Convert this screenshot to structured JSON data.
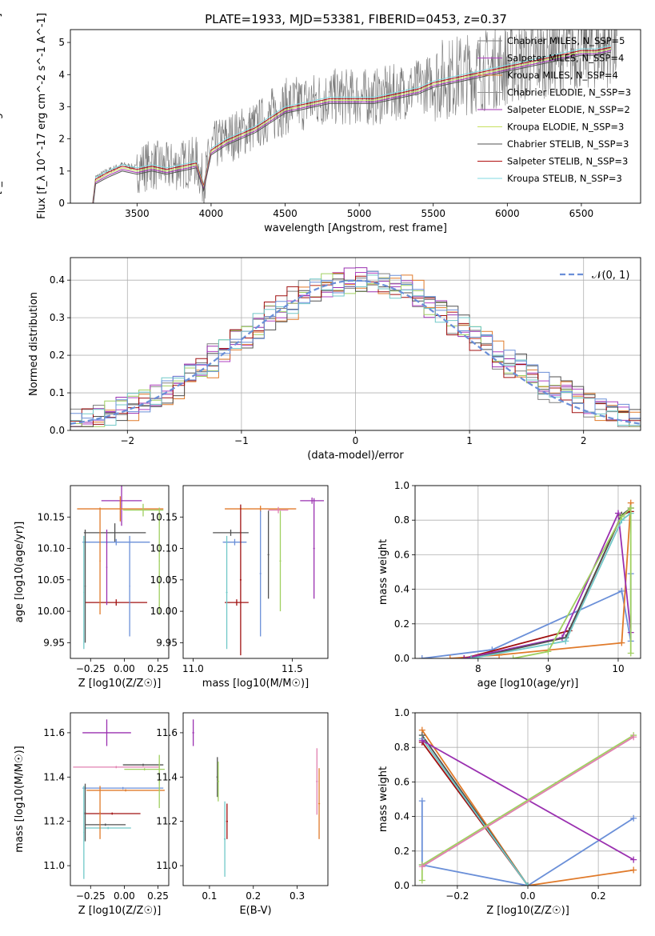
{
  "page": {
    "title": "PLATE=1933, MJD=53381, FIBERID=0453, z=0.37"
  },
  "colors": {
    "chabrier_miles": "#808080",
    "salpeter_miles": "#b040c0",
    "kroupa_miles": "#e08030",
    "chabrier_elodie": "#909090",
    "salpeter_elodie": "#a030b0",
    "kroupa_elodie": "#c8e060",
    "chabrier_stelib": "#505050",
    "salpeter_stelib": "#b01010",
    "kroupa_stelib": "#80d8e0",
    "blue": "#6a8fd8",
    "orange": "#e07a2a",
    "purple": "#9a30b0",
    "green": "#a0d060",
    "red": "#a01010",
    "teal": "#70c8c8",
    "dark": "#505050",
    "pink": "#e080b0"
  },
  "chart_data": [
    {
      "id": "spectrum",
      "type": "line",
      "title": "PLATE=1933, MJD=53381, FIBERID=0453, z=0.37",
      "xlabel": "wavelength [Angstrom, rest frame]",
      "ylabel": "Flux [f_λ 10^-17 erg cm^-2 s^-1 A^-1]",
      "xlim": [
        3050,
        6900
      ],
      "ylim": [
        0,
        5.4
      ],
      "xticks": [
        "3500",
        "4000",
        "4500",
        "5000",
        "5500",
        "6000",
        "6500"
      ],
      "yticks": [
        "0",
        "1",
        "2",
        "3",
        "4",
        "5"
      ],
      "legend_position": "top-right",
      "legend": [
        "Chabrier MILES, N_SSP=5",
        "Salpeter MILES, N_SSP=4",
        "Kroupa MILES, N_SSP=4",
        "Chabrier ELODIE, N_SSP=3",
        "Salpeter ELODIE, N_SSP=2",
        "Kroupa ELODIE, N_SSP=3",
        "Chabrier STELIB, N_SSP=3",
        "Salpeter STELIB, N_SSP=3",
        "Kroupa STELIB, N_SSP=3"
      ],
      "model_x": [
        3200,
        3220,
        3300,
        3400,
        3500,
        3600,
        3700,
        3800,
        3900,
        3950,
        4000,
        4100,
        4200,
        4300,
        4400,
        4500,
        4600,
        4700,
        4800,
        4900,
        5000,
        5100,
        5200,
        5300,
        5400,
        5500,
        5600,
        5700,
        5800,
        5900,
        6000,
        6100,
        6200,
        6300,
        6400,
        6500,
        6600,
        6700
      ],
      "model_y": [
        0.0,
        0.8,
        1.0,
        1.2,
        1.1,
        1.2,
        1.1,
        1.2,
        1.3,
        0.6,
        1.7,
        2.0,
        2.2,
        2.4,
        2.7,
        3.0,
        3.1,
        3.2,
        3.3,
        3.3,
        3.3,
        3.3,
        3.4,
        3.5,
        3.6,
        3.8,
        3.9,
        4.0,
        4.1,
        4.2,
        4.3,
        4.4,
        4.5,
        4.6,
        4.7,
        4.8,
        4.8,
        4.9
      ]
    },
    {
      "id": "residuals",
      "type": "histogram",
      "xlabel": "(data-model)/error",
      "ylabel": "Normed distribution",
      "xlim": [
        -2.5,
        2.5
      ],
      "ylim": [
        0,
        0.46
      ],
      "xticks": [
        "−2",
        "−1",
        "0",
        "1",
        "2"
      ],
      "yticks": [
        "0.0",
        "0.1",
        "0.2",
        "0.3",
        "0.4"
      ],
      "legend": [
        "𝒩(0, 1)"
      ],
      "legend_position": "top-right",
      "grid": true
    },
    {
      "id": "age_vs_Z",
      "type": "errorbar",
      "xlabel": "Z [log10(Z/Z☉)]",
      "ylabel": "age  [log10(age/yr)]",
      "xlim": [
        -0.4,
        0.33
      ],
      "ylim": [
        9.925,
        10.2
      ],
      "xticks": [
        "−0.25",
        "0.00",
        "0.25"
      ],
      "yticks": [
        "9.95",
        "10.00",
        "10.05",
        "10.10",
        "10.15"
      ],
      "points": [
        {
          "x": -0.02,
          "xerr": 0.15,
          "y": 10.176,
          "yerr": 0.04,
          "c": "purple"
        },
        {
          "x": -0.03,
          "xerr": 0.32,
          "y": 10.163,
          "yerr": 0.02,
          "c": "orange"
        },
        {
          "x": 0.14,
          "xerr": 0.15,
          "y": 10.161,
          "yerr": 0.01,
          "c": "green"
        },
        {
          "x": -0.07,
          "xerr": 0.23,
          "y": 10.125,
          "yerr": 0.015,
          "c": "dark"
        },
        {
          "x": -0.06,
          "xerr": 0.25,
          "y": 10.11,
          "yerr": 0.005,
          "c": "blue"
        },
        {
          "x": -0.06,
          "xerr": 0.23,
          "y": 10.014,
          "yerr": 0.005,
          "c": "red"
        },
        {
          "x": -0.3,
          "xerr": 0.004,
          "y": 10.03,
          "yerr": 0.09,
          "c": "teal"
        },
        {
          "x": -0.29,
          "xerr": 0.004,
          "y": 10.04,
          "yerr": 0.09,
          "c": "dark"
        },
        {
          "x": -0.13,
          "xerr": 0.004,
          "y": 10.07,
          "yerr": 0.06,
          "c": "purple"
        },
        {
          "x": -0.18,
          "xerr": 0.004,
          "y": 10.08,
          "yerr": 0.085,
          "c": "orange"
        },
        {
          "x": 0.04,
          "xerr": 0.004,
          "y": 10.04,
          "yerr": 0.08,
          "c": "blue"
        },
        {
          "x": 0.26,
          "xerr": 0.004,
          "y": 10.08,
          "yerr": 0.085,
          "c": "green"
        }
      ]
    },
    {
      "id": "age_vs_mass",
      "type": "errorbar",
      "xlabel": "mass [log10(M/M☉)]",
      "ylabel": "",
      "xlim": [
        10.95,
        11.68
      ],
      "ylim": [
        9.925,
        10.2
      ],
      "xticks": [
        "11.0",
        "11.5"
      ],
      "yticks": [
        "9.95",
        "10.00",
        "10.05",
        "10.10",
        "10.15"
      ],
      "points": [
        {
          "x": 11.6,
          "xerr": 0.06,
          "y": 10.176,
          "yerr": 0.005,
          "c": "purple"
        },
        {
          "x": 11.34,
          "xerr": 0.18,
          "y": 10.163,
          "yerr": 0.005,
          "c": "orange"
        },
        {
          "x": 11.43,
          "xerr": 0.05,
          "y": 10.161,
          "yerr": 0.005,
          "c": "pink"
        },
        {
          "x": 11.19,
          "xerr": 0.09,
          "y": 10.125,
          "yerr": 0.005,
          "c": "dark"
        },
        {
          "x": 11.21,
          "xerr": 0.06,
          "y": 10.11,
          "yerr": 0.005,
          "c": "blue"
        },
        {
          "x": 11.22,
          "xerr": 0.06,
          "y": 10.014,
          "yerr": 0.005,
          "c": "red"
        },
        {
          "x": 11.17,
          "xerr": 0.004,
          "y": 10.03,
          "yerr": 0.09,
          "c": "teal"
        },
        {
          "x": 11.24,
          "xerr": 0.004,
          "y": 10.05,
          "yerr": 0.12,
          "c": "red"
        },
        {
          "x": 11.34,
          "xerr": 0.004,
          "y": 10.06,
          "yerr": 0.1,
          "c": "blue"
        },
        {
          "x": 11.44,
          "xerr": 0.004,
          "y": 10.08,
          "yerr": 0.08,
          "c": "green"
        },
        {
          "x": 11.61,
          "xerr": 0.004,
          "y": 10.1,
          "yerr": 0.08,
          "c": "purple"
        },
        {
          "x": 11.38,
          "xerr": 0.004,
          "y": 10.09,
          "yerr": 0.07,
          "c": "dark"
        }
      ]
    },
    {
      "id": "weight_vs_age",
      "type": "line",
      "xlabel": "age  [log10(age/yr)]",
      "ylabel": "mass weight",
      "xlim": [
        7.1,
        10.32
      ],
      "ylim": [
        0,
        1.0
      ],
      "xticks": [
        "8",
        "9",
        "10"
      ],
      "yticks": [
        "0.0",
        "0.2",
        "0.4",
        "0.6",
        "0.8",
        "1.0"
      ],
      "grid": true,
      "series": [
        {
          "c": "blue",
          "x": [
            7.2,
            8.2,
            10.05,
            10.18,
            10.18
          ],
          "y": [
            0.0,
            0.05,
            0.39,
            0.1,
            0.49
          ]
        },
        {
          "c": "orange",
          "x": [
            7.6,
            8.3,
            10.05,
            10.18
          ],
          "y": [
            0.0,
            0.02,
            0.09,
            0.9
          ]
        },
        {
          "c": "red",
          "x": [
            7.8,
            9.3,
            10.05,
            10.18
          ],
          "y": [
            0.0,
            0.16,
            0.83,
            0.85
          ]
        },
        {
          "c": "purple",
          "x": [
            7.8,
            9.2,
            10.0,
            10.18
          ],
          "y": [
            0.0,
            0.12,
            0.84,
            0.15
          ]
        },
        {
          "c": "dark",
          "x": [
            7.9,
            9.25,
            10.05,
            10.18
          ],
          "y": [
            0.0,
            0.12,
            0.83,
            0.87
          ]
        },
        {
          "c": "teal",
          "x": [
            7.9,
            9.25,
            10.05,
            10.18
          ],
          "y": [
            0.0,
            0.1,
            0.8,
            0.84
          ]
        },
        {
          "c": "green",
          "x": [
            8.5,
            9.0,
            10.05,
            10.18,
            10.18
          ],
          "y": [
            0.0,
            0.04,
            0.82,
            0.87,
            0.03
          ]
        }
      ]
    },
    {
      "id": "mass_vs_Z",
      "type": "errorbar",
      "xlabel": "Z [log10(Z/Z☉)]",
      "ylabel": "mass [log10(M/M☉)]",
      "xlim": [
        -0.4,
        0.33
      ],
      "ylim": [
        10.91,
        11.69
      ],
      "xticks": [
        "−0.25",
        "0.00",
        "0.25"
      ],
      "yticks": [
        "11.0",
        "11.2",
        "11.4",
        "11.6"
      ],
      "points": [
        {
          "x": -0.13,
          "xerr": 0.18,
          "y": 11.6,
          "yerr": 0.06,
          "c": "purple"
        },
        {
          "x": 0.14,
          "xerr": 0.15,
          "y": 11.455,
          "yerr": 0.005,
          "c": "dark"
        },
        {
          "x": -0.06,
          "xerr": 0.32,
          "y": 11.445,
          "yerr": 0.005,
          "c": "pink"
        },
        {
          "x": 0.15,
          "xerr": 0.15,
          "y": 11.435,
          "yerr": 0.005,
          "c": "green"
        },
        {
          "x": -0.01,
          "xerr": 0.3,
          "y": 11.35,
          "yerr": 0.005,
          "c": "blue"
        },
        {
          "x": 0.01,
          "xerr": 0.29,
          "y": 11.34,
          "yerr": 0.005,
          "c": "orange"
        },
        {
          "x": -0.09,
          "xerr": 0.21,
          "y": 11.235,
          "yerr": 0.005,
          "c": "red"
        },
        {
          "x": -0.14,
          "xerr": 0.15,
          "y": 11.185,
          "yerr": 0.005,
          "c": "dark"
        },
        {
          "x": -0.12,
          "xerr": 0.17,
          "y": 11.17,
          "yerr": 0.005,
          "c": "teal"
        },
        {
          "x": -0.3,
          "xerr": 0.004,
          "y": 11.15,
          "yerr": 0.21,
          "c": "teal"
        },
        {
          "x": -0.29,
          "xerr": 0.004,
          "y": 11.24,
          "yerr": 0.13,
          "c": "dark"
        },
        {
          "x": -0.18,
          "xerr": 0.004,
          "y": 11.24,
          "yerr": 0.12,
          "c": "orange"
        },
        {
          "x": 0.26,
          "xerr": 0.004,
          "y": 11.38,
          "yerr": 0.12,
          "c": "green"
        }
      ]
    },
    {
      "id": "mass_vs_EBV",
      "type": "errorbar",
      "xlabel": "E(B-V)",
      "ylabel": "",
      "xlim": [
        0.04,
        0.37
      ],
      "ylim": [
        10.91,
        11.69
      ],
      "xticks": [
        "0.1",
        "0.2",
        "0.3"
      ],
      "yticks": [
        "11.0",
        "11.2",
        "11.4",
        "11.6"
      ],
      "points": [
        {
          "x": 0.063,
          "xerr": 0.002,
          "y": 11.6,
          "yerr": 0.06,
          "c": "purple"
        },
        {
          "x": 0.118,
          "xerr": 0.002,
          "y": 11.4,
          "yerr": 0.09,
          "c": "dark"
        },
        {
          "x": 0.12,
          "xerr": 0.002,
          "y": 11.38,
          "yerr": 0.09,
          "c": "green"
        },
        {
          "x": 0.135,
          "xerr": 0.002,
          "y": 11.12,
          "yerr": 0.17,
          "c": "teal"
        },
        {
          "x": 0.14,
          "xerr": 0.002,
          "y": 11.2,
          "yerr": 0.08,
          "c": "red"
        },
        {
          "x": 0.345,
          "xerr": 0.002,
          "y": 11.38,
          "yerr": 0.15,
          "c": "pink"
        },
        {
          "x": 0.35,
          "xerr": 0.002,
          "y": 11.28,
          "yerr": 0.16,
          "c": "orange"
        }
      ]
    },
    {
      "id": "weight_vs_Z",
      "type": "line",
      "xlabel": "Z [log10(Z/Z☉)]",
      "ylabel": "mass weight",
      "xlim": [
        -0.32,
        0.32
      ],
      "ylim": [
        0,
        1.0
      ],
      "xticks": [
        "−0.2",
        "0.0",
        "0.2"
      ],
      "yticks": [
        "0.0",
        "0.2",
        "0.4",
        "0.6",
        "0.8",
        "1.0"
      ],
      "grid": true,
      "series": [
        {
          "c": "blue",
          "x": [
            -0.3,
            -0.3,
            0.0,
            0.3
          ],
          "y": [
            0.49,
            0.12,
            0.0,
            0.39
          ]
        },
        {
          "c": "orange",
          "x": [
            -0.3,
            0.0,
            0.3
          ],
          "y": [
            0.9,
            0.0,
            0.09
          ]
        },
        {
          "c": "red",
          "x": [
            -0.3,
            0.0
          ],
          "y": [
            0.83,
            0.0
          ]
        },
        {
          "c": "dark",
          "x": [
            -0.3,
            0.0
          ],
          "y": [
            0.87,
            0.0
          ]
        },
        {
          "c": "teal",
          "x": [
            -0.3,
            0.0
          ],
          "y": [
            0.85,
            0.0
          ]
        },
        {
          "c": "purple",
          "x": [
            -0.3,
            0.3
          ],
          "y": [
            0.84,
            0.15
          ]
        },
        {
          "c": "green",
          "x": [
            -0.3,
            -0.3,
            0.3
          ],
          "y": [
            0.03,
            0.12,
            0.87
          ]
        },
        {
          "c": "pink",
          "x": [
            -0.3,
            0.3
          ],
          "y": [
            0.11,
            0.86
          ]
        }
      ]
    }
  ]
}
